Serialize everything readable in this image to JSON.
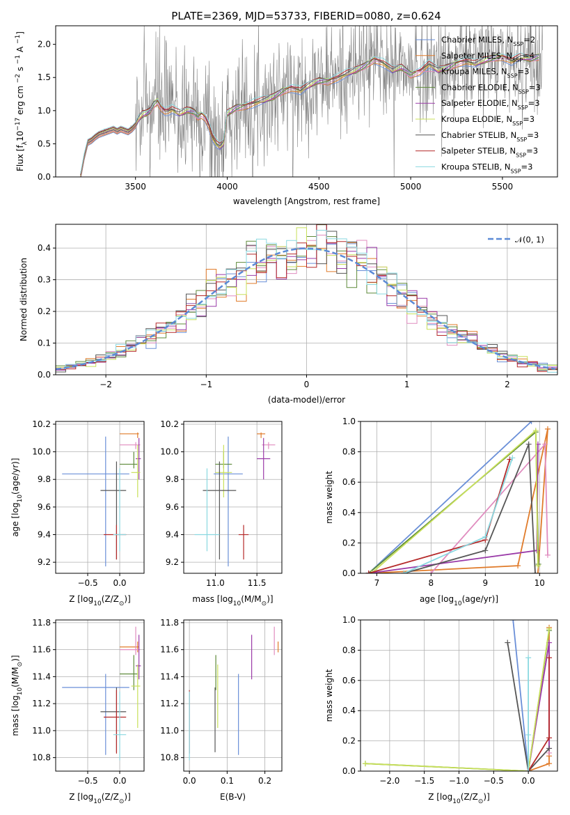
{
  "chart_data": [
    {
      "id": "p1",
      "type": "line",
      "title": "PLATE=2369, MJD=53733, FIBERID=0080, z=0.624",
      "xlabel": "wavelength [Angstrom, rest frame]",
      "ylabel": "Flux [f",
      "ylabel_sub": "λ",
      "ylabel_sup": "−17",
      "ylabel_rest": "10",
      "ylabel_units": "erg cm",
      "ylabel_sup2": "−2",
      "ylabel_s": "s",
      "ylabel_sup3": "−1",
      "ylabel_A": "A",
      "ylabel_sup4": "−1",
      "ylabel_end": "]",
      "xlim": [
        3065,
        5800
      ],
      "ylim": [
        0,
        2.28
      ],
      "xticks": [
        3500,
        4000,
        4500,
        5000,
        5500
      ],
      "yticks": [
        0.0,
        0.5,
        1.0,
        1.5,
        2.0
      ],
      "ytick_labels": [
        "0.0",
        "0.5",
        "1.0",
        "1.5",
        "2.0"
      ],
      "model_x": [
        3200,
        3220,
        3240,
        3260,
        3280,
        3300,
        3320,
        3340,
        3360,
        3380,
        3400,
        3420,
        3440,
        3460,
        3480,
        3500,
        3520,
        3540,
        3560,
        3580,
        3600,
        3620,
        3640,
        3660,
        3680,
        3700,
        3720,
        3740,
        3760,
        3780,
        3800,
        3820,
        3840,
        3860,
        3880,
        3900,
        3920,
        3940,
        3960,
        3980,
        4000,
        4050,
        4100,
        4150,
        4200,
        4250,
        4300,
        4350,
        4400,
        4450,
        4500,
        4550,
        4600,
        4650,
        4700,
        4750,
        4800,
        4850,
        4900,
        4950,
        5000,
        5050,
        5100,
        5150,
        5200,
        5250,
        5300,
        5350,
        5400,
        5450,
        5500,
        5550,
        5600,
        5650,
        5700
      ],
      "model_y": [
        0.0,
        0.3,
        0.52,
        0.55,
        0.6,
        0.64,
        0.66,
        0.68,
        0.7,
        0.72,
        0.69,
        0.72,
        0.7,
        0.68,
        0.72,
        0.78,
        0.88,
        0.94,
        0.96,
        1.0,
        1.1,
        1.15,
        1.05,
        1.0,
        1.0,
        1.02,
        0.98,
        0.95,
        0.97,
        1.0,
        1.0,
        0.98,
        0.92,
        0.95,
        0.9,
        0.78,
        0.6,
        0.5,
        0.45,
        0.5,
        0.95,
        1.05,
        1.08,
        1.12,
        1.15,
        1.2,
        1.3,
        1.35,
        1.3,
        1.38,
        1.45,
        1.45,
        1.5,
        1.55,
        1.6,
        1.68,
        1.78,
        1.72,
        1.6,
        1.65,
        1.55,
        1.6,
        1.7,
        1.6,
        1.65,
        1.72,
        1.75,
        1.7,
        1.75,
        1.8,
        1.82,
        1.75,
        1.8,
        1.78,
        1.82
      ],
      "data_noise_start": 3500,
      "legend": [
        {
          "label": "Chabrier MILES, N",
          "sub": "SSP",
          "tail": "=2",
          "color": "#6a8fd8"
        },
        {
          "label": "Salpeter MILES, N",
          "sub": "SSP",
          "tail": "=4",
          "color": "#e07b2a"
        },
        {
          "label": "Kroupa MILES, N",
          "sub": "SSP",
          "tail": "=3",
          "color": "#e08cbf"
        },
        {
          "label": "Chabrier ELODIE, N",
          "sub": "SSP",
          "tail": "=3",
          "color": "#5e8a3a"
        },
        {
          "label": "Salpeter ELODIE, N",
          "sub": "SSP",
          "tail": "=3",
          "color": "#9a3aa8"
        },
        {
          "label": "Kroupa ELODIE, N",
          "sub": "SSP",
          "tail": "=3",
          "color": "#c8e05a"
        },
        {
          "label": "Chabrier STELIB, N",
          "sub": "SSP",
          "tail": "=3",
          "color": "#555555"
        },
        {
          "label": "Salpeter STELIB, N",
          "sub": "SSP",
          "tail": "=3",
          "color": "#b52a2a"
        },
        {
          "label": "Kroupa STELIB, N",
          "sub": "SSP",
          "tail": "=3",
          "color": "#8ad8e0"
        }
      ]
    },
    {
      "id": "p2",
      "type": "line",
      "xlabel": "(data-model)/error",
      "ylabel": "Normed distribution",
      "xlim": [
        -2.5,
        2.5
      ],
      "ylim": [
        0,
        0.475
      ],
      "xticks": [
        -2,
        -1,
        0,
        1,
        2
      ],
      "xtick_labels": [
        "−2",
        "−1",
        "0",
        "1",
        "2"
      ],
      "yticks": [
        0.0,
        0.1,
        0.2,
        0.3,
        0.4
      ],
      "ytick_labels": [
        "0.0",
        "0.1",
        "0.2",
        "0.3",
        "0.4"
      ],
      "legend_label": "𝒩(0, 1)",
      "bin_width": 0.1
    },
    {
      "id": "p3",
      "type": "scatter",
      "xlabel": "Z [log",
      "xlabel_sub": "10",
      "xlabel_rest": "(Z/Z",
      "xlabel_sub2": "⊙",
      "xlabel_end": ")]",
      "ylabel": "age  [log",
      "ylabel_sub": "10",
      "ylabel_rest": "(age/yr)]",
      "xlim": [
        -1.0,
        0.38
      ],
      "ylim": [
        9.12,
        10.22
      ],
      "xticks": [
        -0.5,
        0.0
      ],
      "xtick_labels": [
        "−0.5",
        "0.0"
      ],
      "yticks": [
        9.2,
        9.4,
        9.6,
        9.8,
        10.0,
        10.2
      ],
      "ytick_labels": [
        "9.2",
        "9.4",
        "9.6",
        "9.8",
        "10.0",
        "10.2"
      ]
    },
    {
      "id": "p4",
      "type": "scatter",
      "xlabel": "mass [log",
      "xlabel_sub": "10",
      "xlabel_rest": "(M/M",
      "xlabel_sub2": "⊙",
      "xlabel_end": ")]",
      "xlim": [
        10.62,
        11.8
      ],
      "ylim": [
        9.12,
        10.22
      ],
      "xticks": [
        11.0,
        11.5
      ],
      "xtick_labels": [
        "11.0",
        "11.5"
      ],
      "yticks": [
        9.2,
        9.4,
        9.6,
        9.8,
        10.0,
        10.2
      ],
      "ytick_labels": [
        "9.2",
        "9.4",
        "9.6",
        "9.8",
        "10.0",
        "10.2"
      ]
    },
    {
      "id": "p5",
      "type": "line",
      "xlabel": "age  [log",
      "xlabel_sub": "10",
      "xlabel_rest": "(age/yr)]",
      "ylabel": "mass weight",
      "xlim": [
        6.7,
        10.33
      ],
      "ylim": [
        0,
        1.0
      ],
      "xticks": [
        7,
        8,
        9,
        10
      ],
      "xtick_labels": [
        "7",
        "8",
        "9",
        "10"
      ],
      "yticks": [
        0.0,
        0.2,
        0.4,
        0.6,
        0.8,
        1.0
      ],
      "ytick_labels": [
        "0.0",
        "0.2",
        "0.4",
        "0.6",
        "0.8",
        "1.0"
      ]
    },
    {
      "id": "p6",
      "type": "scatter",
      "xlabel": "Z [log",
      "xlabel_sub": "10",
      "xlabel_rest": "(Z/Z",
      "xlabel_sub2": "⊙",
      "xlabel_end": ")]",
      "ylabel": "mass [log",
      "ylabel_sub": "10",
      "ylabel_rest": "(M/M",
      "ylabel_sub2": "⊙",
      "ylabel_end": ")]",
      "xlim": [
        -1.0,
        0.38
      ],
      "ylim": [
        10.7,
        11.82
      ],
      "xticks": [
        -0.5,
        0.0
      ],
      "xtick_labels": [
        "−0.5",
        "0.0"
      ],
      "yticks": [
        10.8,
        11.0,
        11.2,
        11.4,
        11.6,
        11.8
      ],
      "ytick_labels": [
        "10.8",
        "11.0",
        "11.2",
        "11.4",
        "11.6",
        "11.8"
      ]
    },
    {
      "id": "p7",
      "type": "scatter",
      "xlabel": "E(B-V)",
      "xlim": [
        -0.015,
        0.245
      ],
      "ylim": [
        10.7,
        11.82
      ],
      "xticks": [
        0.0,
        0.1,
        0.2
      ],
      "xtick_labels": [
        "0.0",
        "0.1",
        "0.2"
      ],
      "yticks": [
        10.8,
        11.0,
        11.2,
        11.4,
        11.6,
        11.8
      ],
      "ytick_labels": [
        "10.8",
        "11.0",
        "11.2",
        "11.4",
        "11.6",
        "11.8"
      ]
    },
    {
      "id": "p8",
      "type": "line",
      "xlabel": "Z [log",
      "xlabel_sub": "10",
      "xlabel_rest": "(Z/Z",
      "xlabel_sub2": "⊙",
      "xlabel_end": ")]",
      "ylabel": "mass weight",
      "xlim": [
        -2.42,
        0.42
      ],
      "ylim": [
        0,
        1.0
      ],
      "xticks": [
        -2.0,
        -1.5,
        -1.0,
        -0.5,
        0.0
      ],
      "xtick_labels": [
        "−2.0",
        "−1.5",
        "−1.0",
        "−0.5",
        "0.0"
      ],
      "yticks": [
        0.0,
        0.2,
        0.4,
        0.6,
        0.8,
        1.0
      ],
      "ytick_labels": [
        "0.0",
        "0.2",
        "0.4",
        "0.6",
        "0.8",
        "1.0"
      ]
    }
  ],
  "models": [
    {
      "color": "#6a8fd8",
      "Z": -0.22,
      "Zerr": [
        -0.9,
        0.15
      ],
      "age": 9.84,
      "ageerr": [
        9.17,
        10.11
      ],
      "mass": 11.32,
      "masserr": [
        10.82,
        11.42
      ],
      "mass_h": [
        10.98,
        11.33
      ],
      "ebv": 0.13,
      "sfh": [
        [
          6.85,
          0.0
        ],
        [
          9.85,
          1.0
        ]
      ],
      "zsfh": [
        [
          0.0,
          0.0
        ],
        [
          -0.22,
          1.0
        ]
      ]
    },
    {
      "color": "#e07b2a",
      "Z": 0.28,
      "Zerr": [
        0.0,
        0.3
      ],
      "age": 10.13,
      "ageerr": [
        10.1,
        10.14
      ],
      "mass": 11.62,
      "masserr": [
        11.58,
        11.66
      ],
      "mass_h": [
        11.5,
        11.6
      ],
      "ebv": 0.235,
      "sfh": [
        [
          6.85,
          0.0
        ],
        [
          9.6,
          0.05
        ],
        [
          10.15,
          0.95
        ],
        [
          9.97,
          0.0
        ]
      ],
      "zsfh": [
        [
          0.0,
          0.0
        ],
        [
          0.3,
          0.05
        ],
        [
          0.3,
          0.95
        ],
        [
          0.3,
          0.1
        ]
      ]
    },
    {
      "color": "#e08cbf",
      "Z": 0.25,
      "Zerr": [
        0.0,
        0.32
      ],
      "age": 10.05,
      "ageerr": [
        10.02,
        10.07
      ],
      "mass": 11.6,
      "masserr": [
        11.56,
        11.77
      ],
      "mass_h": [
        11.56,
        11.72
      ],
      "ebv": 0.225,
      "sfh": [
        [
          8.0,
          0.0
        ],
        [
          10.1,
          0.85
        ],
        [
          10.15,
          0.12
        ]
      ],
      "zsfh": [
        [
          0.0,
          0.0
        ],
        [
          0.3,
          0.85
        ],
        [
          0.3,
          0.12
        ]
      ]
    },
    {
      "color": "#5e8a3a",
      "Z": 0.22,
      "Zerr": [
        0.0,
        0.28
      ],
      "age": 9.91,
      "ageerr": [
        9.88,
        10.0
      ],
      "mass": 11.42,
      "masserr": [
        11.3,
        11.56
      ],
      "mass_h": [
        11.0,
        11.2
      ],
      "ebv": 0.07,
      "sfh": [
        [
          6.85,
          0.0
        ],
        [
          9.93,
          0.93
        ],
        [
          9.98,
          0.06
        ]
      ],
      "zsfh": [
        [
          -2.35,
          0.05
        ],
        [
          0.0,
          0.0
        ],
        [
          0.3,
          0.93
        ]
      ]
    },
    {
      "color": "#9a3aa8",
      "Z": 0.3,
      "Zerr": [
        0.25,
        0.33
      ],
      "age": 9.95,
      "ageerr": [
        9.8,
        10.1
      ],
      "mass": 11.48,
      "masserr": [
        11.38,
        11.71
      ],
      "mass_h": [
        11.5,
        11.66
      ],
      "ebv": 0.165,
      "sfh": [
        [
          6.85,
          0.0
        ],
        [
          9.95,
          0.15
        ],
        [
          9.97,
          0.85
        ]
      ],
      "zsfh": [
        [
          0.3,
          0.15
        ],
        [
          0.3,
          0.85
        ],
        [
          0.0,
          0.0
        ]
      ]
    },
    {
      "color": "#c8e05a",
      "Z": 0.28,
      "Zerr": [
        0.18,
        0.32
      ],
      "age": 9.85,
      "ageerr": [
        9.67,
        10.05
      ],
      "mass": 11.33,
      "masserr": [
        11.02,
        11.49
      ],
      "mass_h": [
        11.0,
        11.2
      ],
      "ebv": 0.075,
      "sfh": [
        [
          6.9,
          0.0
        ],
        [
          9.93,
          0.94
        ],
        [
          9.97,
          0.05
        ]
      ],
      "zsfh": [
        [
          -2.35,
          0.05
        ],
        [
          0.0,
          0.0
        ],
        [
          0.3,
          0.94
        ]
      ]
    },
    {
      "color": "#555555",
      "Z": -0.05,
      "Zerr": [
        -0.3,
        0.1
      ],
      "age": 9.72,
      "ageerr": [
        9.22,
        9.93
      ],
      "mass": 11.14,
      "masserr": [
        10.84,
        11.32
      ],
      "mass_h": [
        10.85,
        11.25
      ],
      "ebv": 0.068,
      "sfh": [
        [
          7.5,
          0.0
        ],
        [
          9.0,
          0.15
        ],
        [
          9.8,
          0.85
        ],
        [
          9.92,
          0.0
        ]
      ],
      "zsfh": [
        [
          -0.3,
          0.85
        ],
        [
          0.0,
          0.0
        ],
        [
          0.3,
          0.15
        ]
      ]
    },
    {
      "color": "#b52a2a",
      "Z": -0.05,
      "Zerr": [
        -0.25,
        0.1
      ],
      "age": 9.4,
      "ageerr": [
        9.22,
        9.47
      ],
      "mass": 11.1,
      "masserr": [
        10.83,
        11.3
      ],
      "mass_h": [
        11.28,
        11.4
      ],
      "ebv": 0.0,
      "sfh": [
        [
          6.85,
          0.0
        ],
        [
          9.0,
          0.22
        ],
        [
          9.45,
          0.75
        ]
      ],
      "zsfh": [
        [
          0.0,
          0.0
        ],
        [
          0.3,
          0.22
        ],
        [
          0.3,
          0.75
        ]
      ]
    },
    {
      "color": "#8ad8e0",
      "Z": 0.0,
      "Zerr": [
        -0.1,
        0.1
      ],
      "age": 9.4,
      "ageerr": [
        9.28,
        9.88
      ],
      "mass": 10.97,
      "masserr": [
        10.78,
        11.29
      ],
      "mass_h": [
        10.75,
        11.05
      ],
      "ebv": 0.0,
      "sfh": [
        [
          7.5,
          0.0
        ],
        [
          9.0,
          0.24
        ],
        [
          9.5,
          0.76
        ]
      ],
      "zsfh": [
        [
          0.0,
          0.75
        ],
        [
          0.0,
          0.24
        ],
        [
          0.0,
          0.0
        ]
      ]
    }
  ]
}
